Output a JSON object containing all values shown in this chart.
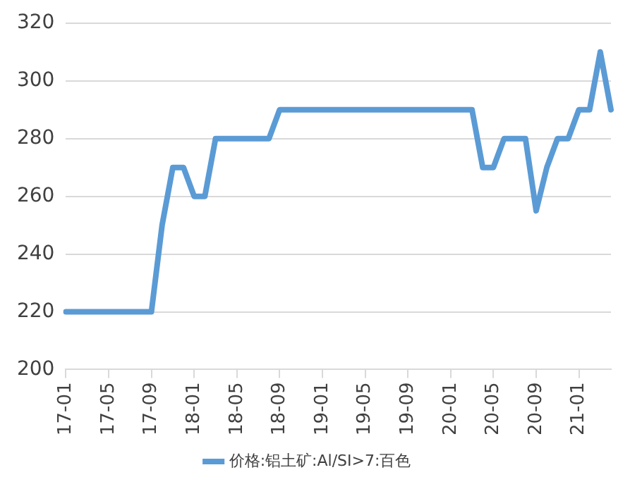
{
  "chart_data": {
    "type": "line",
    "categories": [
      "17-01",
      null,
      null,
      null,
      "17-05",
      null,
      null,
      null,
      "17-09",
      null,
      null,
      null,
      "18-01",
      null,
      null,
      null,
      "18-05",
      null,
      null,
      null,
      "18-09",
      null,
      null,
      null,
      "19-01",
      null,
      null,
      null,
      "19-05",
      null,
      null,
      null,
      "19-09",
      null,
      null,
      null,
      "20-01",
      null,
      null,
      null,
      "20-05",
      null,
      null,
      null,
      "20-09",
      null,
      null,
      null,
      "21-01",
      null,
      null,
      null
    ],
    "series": [
      {
        "name": "价格:铝土矿:Al/SI>7:百色",
        "color": "#5b9bd5",
        "values": [
          220,
          220,
          220,
          220,
          220,
          220,
          220,
          220,
          220,
          250,
          270,
          270,
          260,
          260,
          280,
          280,
          280,
          280,
          280,
          280,
          290,
          290,
          290,
          290,
          290,
          290,
          290,
          290,
          290,
          290,
          290,
          290,
          290,
          290,
          290,
          290,
          290,
          290,
          290,
          270,
          270,
          280,
          280,
          280,
          255,
          270,
          280,
          280,
          290,
          290,
          310,
          290
        ]
      }
    ],
    "ylim": [
      200,
      320
    ],
    "yticks": [
      200,
      220,
      240,
      260,
      280,
      300,
      320
    ],
    "grid": "y",
    "legend": "bottom",
    "marker": "none",
    "line_style": "solid"
  }
}
